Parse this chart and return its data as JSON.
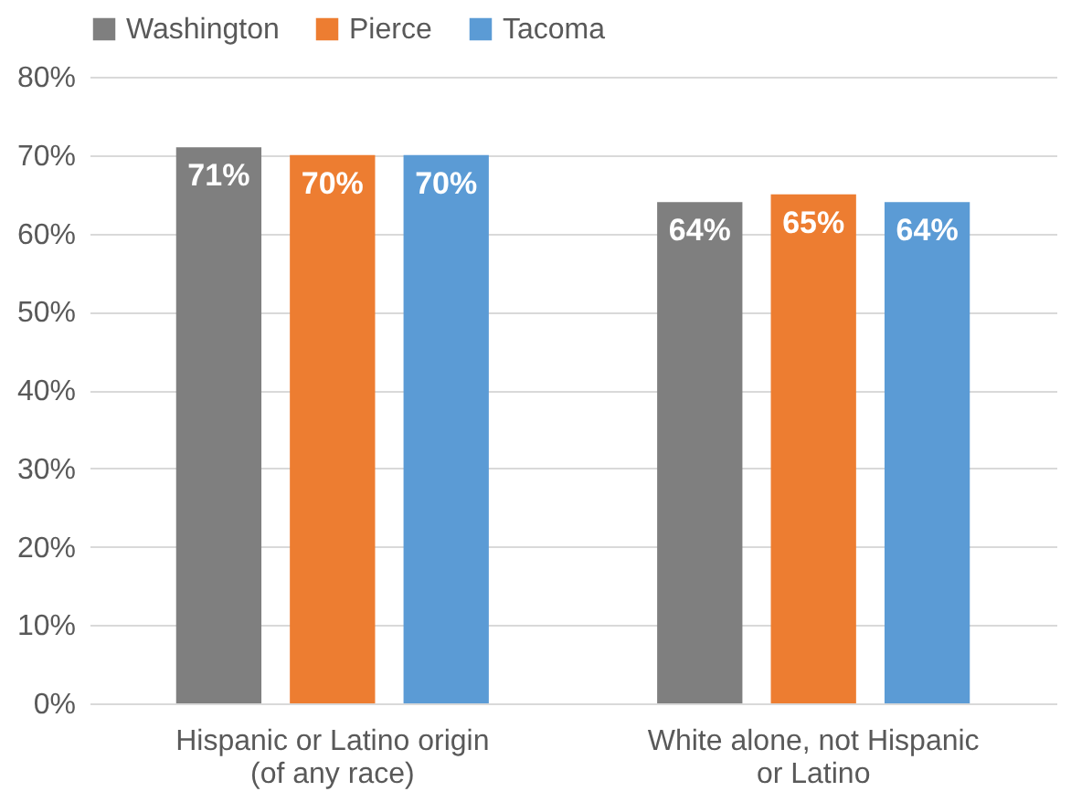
{
  "chart_data": {
    "type": "bar",
    "categories": [
      "Hispanic or Latino origin (of any race)",
      "White alone, not Hispanic or Latino"
    ],
    "series": [
      {
        "name": "Washington",
        "color": "#7f7f7f",
        "values": [
          71,
          64
        ],
        "value_labels": [
          "71%",
          "64%"
        ]
      },
      {
        "name": "Pierce",
        "color": "#ed7d31",
        "values": [
          70,
          65
        ],
        "value_labels": [
          "70%",
          "65%"
        ]
      },
      {
        "name": "Tacoma",
        "color": "#5b9bd5",
        "values": [
          70,
          64
        ],
        "value_labels": [
          "70%",
          "64%"
        ]
      }
    ],
    "ylim": [
      0,
      80
    ],
    "yticks": [
      {
        "value": 0,
        "label": "0%"
      },
      {
        "value": 10,
        "label": "10%"
      },
      {
        "value": 20,
        "label": "20%"
      },
      {
        "value": 30,
        "label": "30%"
      },
      {
        "value": 40,
        "label": "40%"
      },
      {
        "value": 50,
        "label": "50%"
      },
      {
        "value": 60,
        "label": "60%"
      },
      {
        "value": 70,
        "label": "70%"
      },
      {
        "value": 80,
        "label": "80%"
      }
    ],
    "grid": "y",
    "legend": "top"
  }
}
